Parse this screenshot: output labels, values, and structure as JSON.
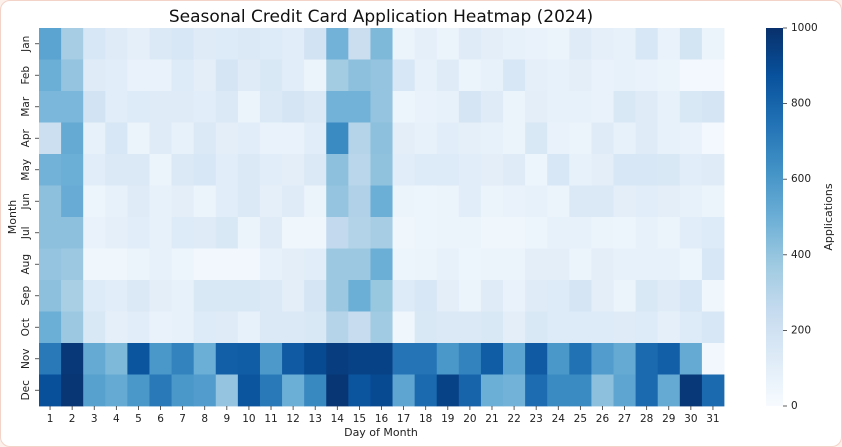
{
  "chart_data": {
    "type": "heatmap",
    "title": "Seasonal Credit Card Application Heatmap (2024)",
    "xlabel": "Day of Month",
    "ylabel": "Month",
    "x": [
      "1",
      "2",
      "3",
      "4",
      "5",
      "6",
      "7",
      "8",
      "9",
      "10",
      "11",
      "12",
      "13",
      "14",
      "15",
      "16",
      "17",
      "18",
      "19",
      "20",
      "21",
      "22",
      "23",
      "24",
      "25",
      "26",
      "27",
      "28",
      "29",
      "30",
      "31"
    ],
    "y": [
      "Jan",
      "Feb",
      "Mar",
      "Apr",
      "May",
      "Jun",
      "Jul",
      "Aug",
      "Sep",
      "Oct",
      "Nov",
      "Dec"
    ],
    "colorbar": {
      "label": "Applications",
      "range": [
        0,
        1000
      ],
      "ticks": [
        0,
        200,
        400,
        600,
        800,
        1000
      ]
    },
    "colormap": "Blues",
    "values": [
      [
        550,
        350,
        160,
        120,
        90,
        140,
        160,
        120,
        130,
        140,
        130,
        110,
        190,
        480,
        230,
        450,
        60,
        90,
        60,
        120,
        100,
        80,
        70,
        60,
        120,
        90,
        80,
        160,
        70,
        180,
        60
      ],
      [
        500,
        400,
        120,
        110,
        70,
        70,
        130,
        100,
        170,
        120,
        150,
        110,
        60,
        360,
        420,
        400,
        160,
        80,
        120,
        60,
        80,
        160,
        90,
        80,
        100,
        70,
        80,
        70,
        60,
        20,
        20
      ],
      [
        460,
        460,
        190,
        110,
        130,
        120,
        120,
        110,
        140,
        60,
        140,
        170,
        140,
        480,
        480,
        400,
        50,
        70,
        80,
        170,
        120,
        60,
        100,
        80,
        80,
        70,
        150,
        120,
        80,
        150,
        170
      ],
      [
        220,
        520,
        80,
        160,
        60,
        120,
        80,
        140,
        100,
        110,
        70,
        70,
        110,
        650,
        300,
        420,
        100,
        80,
        110,
        90,
        80,
        60,
        150,
        70,
        60,
        120,
        80,
        120,
        80,
        70,
        20
      ],
      [
        480,
        500,
        110,
        140,
        140,
        60,
        140,
        160,
        110,
        140,
        110,
        100,
        140,
        420,
        290,
        410,
        110,
        130,
        130,
        110,
        100,
        120,
        50,
        160,
        80,
        100,
        160,
        160,
        150,
        110,
        120
      ],
      [
        420,
        510,
        50,
        80,
        120,
        80,
        100,
        60,
        110,
        140,
        90,
        120,
        60,
        400,
        320,
        500,
        60,
        50,
        60,
        110,
        60,
        70,
        80,
        60,
        140,
        140,
        100,
        110,
        100,
        80,
        60
      ],
      [
        420,
        420,
        70,
        90,
        110,
        80,
        130,
        120,
        150,
        60,
        120,
        40,
        40,
        260,
        310,
        350,
        40,
        50,
        60,
        60,
        40,
        40,
        50,
        80,
        80,
        60,
        50,
        80,
        60,
        110,
        130
      ],
      [
        400,
        380,
        40,
        40,
        60,
        80,
        50,
        30,
        30,
        30,
        80,
        100,
        110,
        380,
        380,
        500,
        50,
        60,
        80,
        50,
        60,
        60,
        100,
        100,
        60,
        100,
        80,
        80,
        80,
        50,
        160
      ],
      [
        420,
        340,
        130,
        110,
        140,
        100,
        80,
        150,
        150,
        150,
        140,
        100,
        170,
        380,
        500,
        390,
        130,
        160,
        100,
        60,
        120,
        70,
        120,
        130,
        170,
        100,
        60,
        150,
        120,
        160,
        40
      ],
      [
        500,
        380,
        150,
        90,
        110,
        70,
        80,
        130,
        120,
        80,
        140,
        140,
        150,
        300,
        240,
        370,
        40,
        150,
        140,
        140,
        150,
        100,
        150,
        130,
        130,
        130,
        120,
        130,
        90,
        130,
        160
      ],
      [
        720,
        970,
        520,
        450,
        860,
        600,
        680,
        500,
        820,
        830,
        590,
        840,
        900,
        950,
        930,
        930,
        740,
        740,
        600,
        680,
        830,
        550,
        840,
        600,
        750,
        580,
        520,
        780,
        820,
        520,
        30
      ],
      [
        880,
        980,
        560,
        520,
        600,
        720,
        600,
        580,
        400,
        860,
        720,
        500,
        660,
        980,
        860,
        900,
        540,
        780,
        930,
        800,
        500,
        480,
        770,
        650,
        650,
        420,
        540,
        780,
        520,
        970,
        780
      ]
    ]
  }
}
